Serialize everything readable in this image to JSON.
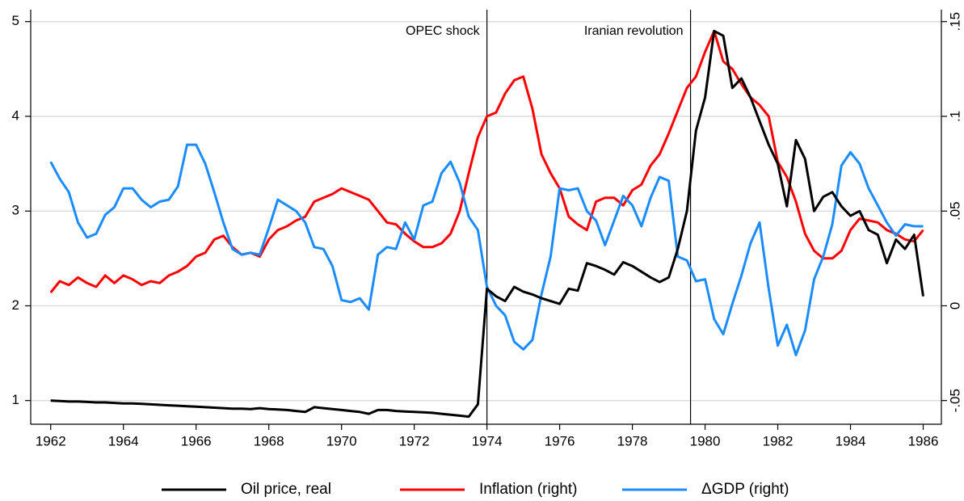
{
  "chart_data": {
    "type": "line",
    "x": [
      1962,
      1962.25,
      1962.5,
      1962.75,
      1963,
      1963.25,
      1963.5,
      1963.75,
      1964,
      1964.25,
      1964.5,
      1964.75,
      1965,
      1965.25,
      1965.5,
      1965.75,
      1966,
      1966.25,
      1966.5,
      1966.75,
      1967,
      1967.25,
      1967.5,
      1967.75,
      1968,
      1968.25,
      1968.5,
      1968.75,
      1969,
      1969.25,
      1969.5,
      1969.75,
      1970,
      1970.25,
      1970.5,
      1970.75,
      1971,
      1971.25,
      1971.5,
      1971.75,
      1972,
      1972.25,
      1972.5,
      1972.75,
      1973,
      1973.25,
      1973.5,
      1973.75,
      1974,
      1974.25,
      1974.5,
      1974.75,
      1975,
      1975.25,
      1975.5,
      1975.75,
      1976,
      1976.25,
      1976.5,
      1976.75,
      1977,
      1977.25,
      1977.5,
      1977.75,
      1978,
      1978.25,
      1978.5,
      1978.75,
      1979,
      1979.25,
      1979.5,
      1979.75,
      1980,
      1980.25,
      1980.5,
      1980.75,
      1981,
      1981.25,
      1981.5,
      1981.75,
      1982,
      1982.25,
      1982.5,
      1982.75,
      1983,
      1983.25,
      1983.5,
      1983.75,
      1984,
      1984.25,
      1984.5,
      1984.75,
      1985,
      1985.25,
      1985.5,
      1985.75,
      1986
    ],
    "series": [
      {
        "name": "Oil price, real",
        "color": "#000000",
        "axis": "y",
        "values": [
          1.0,
          0.995,
          0.99,
          0.99,
          0.985,
          0.98,
          0.98,
          0.975,
          0.97,
          0.97,
          0.965,
          0.96,
          0.955,
          0.95,
          0.945,
          0.94,
          0.935,
          0.93,
          0.925,
          0.92,
          0.915,
          0.915,
          0.91,
          0.92,
          0.91,
          0.905,
          0.9,
          0.89,
          0.88,
          0.93,
          0.92,
          0.91,
          0.9,
          0.89,
          0.88,
          0.86,
          0.9,
          0.9,
          0.89,
          0.885,
          0.88,
          0.875,
          0.87,
          0.86,
          0.85,
          0.84,
          0.83,
          0.96,
          2.18,
          2.1,
          2.05,
          2.2,
          2.15,
          2.12,
          2.08,
          2.05,
          2.02,
          2.18,
          2.16,
          2.45,
          2.42,
          2.38,
          2.33,
          2.46,
          2.42,
          2.36,
          2.3,
          2.25,
          2.3,
          2.6,
          3.0,
          3.85,
          4.2,
          4.9,
          4.85,
          4.3,
          4.4,
          4.2,
          3.95,
          3.7,
          3.5,
          3.05,
          3.75,
          3.55,
          3.0,
          3.15,
          3.2,
          3.05,
          2.95,
          3.0,
          2.8,
          2.75,
          2.45,
          2.7,
          2.6,
          2.75,
          2.1
        ]
      },
      {
        "name": "Inflation (right)",
        "color": "#ff0000",
        "axis": "y2",
        "values": [
          0.007,
          0.013,
          0.011,
          0.015,
          0.012,
          0.01,
          0.016,
          0.012,
          0.016,
          0.014,
          0.011,
          0.013,
          0.012,
          0.016,
          0.018,
          0.021,
          0.026,
          0.028,
          0.035,
          0.037,
          0.031,
          0.027,
          0.028,
          0.026,
          0.035,
          0.04,
          0.042,
          0.045,
          0.047,
          0.055,
          0.057,
          0.059,
          0.062,
          0.06,
          0.058,
          0.056,
          0.05,
          0.044,
          0.043,
          0.038,
          0.034,
          0.031,
          0.031,
          0.033,
          0.038,
          0.05,
          0.07,
          0.089,
          0.1,
          0.102,
          0.112,
          0.119,
          0.121,
          0.104,
          0.08,
          0.07,
          0.062,
          0.047,
          0.043,
          0.04,
          0.055,
          0.057,
          0.057,
          0.053,
          0.061,
          0.064,
          0.074,
          0.08,
          0.091,
          0.103,
          0.115,
          0.121,
          0.134,
          0.145,
          0.129,
          0.125,
          0.117,
          0.11,
          0.106,
          0.1,
          0.076,
          0.068,
          0.055,
          0.038,
          0.029,
          0.025,
          0.025,
          0.029,
          0.04,
          0.046,
          0.045,
          0.044,
          0.04,
          0.038,
          0.035,
          0.034,
          0.04
        ]
      },
      {
        "name": "ΔGDP (right)",
        "color": "#1a8cff",
        "axis": "y2",
        "values": [
          0.076,
          0.067,
          0.06,
          0.044,
          0.036,
          0.038,
          0.048,
          0.052,
          0.062,
          0.062,
          0.056,
          0.052,
          0.055,
          0.056,
          0.063,
          0.085,
          0.085,
          0.075,
          0.06,
          0.044,
          0.03,
          0.027,
          0.028,
          0.027,
          0.041,
          0.056,
          0.053,
          0.05,
          0.044,
          0.031,
          0.03,
          0.021,
          0.003,
          0.002,
          0.004,
          -0.002,
          0.027,
          0.031,
          0.03,
          0.044,
          0.035,
          0.053,
          0.055,
          0.07,
          0.076,
          0.065,
          0.047,
          0.04,
          0.01,
          0.0,
          -0.005,
          -0.019,
          -0.023,
          -0.018,
          0.006,
          0.026,
          0.062,
          0.061,
          0.062,
          0.05,
          0.045,
          0.032,
          0.045,
          0.058,
          0.053,
          0.042,
          0.057,
          0.068,
          0.066,
          0.026,
          0.024,
          0.013,
          0.014,
          -0.007,
          -0.015,
          0.001,
          0.016,
          0.033,
          0.044,
          0.009,
          -0.021,
          -0.01,
          -0.026,
          -0.013,
          0.014,
          0.026,
          0.043,
          0.074,
          0.081,
          0.075,
          0.062,
          0.053,
          0.044,
          0.037,
          0.043,
          0.042,
          0.042
        ]
      }
    ],
    "xlim": [
      1961.45,
      1986.5
    ],
    "xticks": [
      1962,
      1964,
      1966,
      1968,
      1970,
      1972,
      1974,
      1976,
      1978,
      1980,
      1982,
      1984,
      1986
    ],
    "ylim": [
      0.75,
      5.1
    ],
    "yticks": [
      1,
      2,
      3,
      4,
      5
    ],
    "y2lim": [
      -0.0625,
      0.155
    ],
    "y2ticks": [
      {
        "value": -0.05,
        "label": "-.05"
      },
      0,
      {
        "value": 0.05,
        "label": ".05"
      },
      {
        "value": 0.1,
        "label": ".1"
      },
      {
        "value": 0.15,
        "label": ".15"
      }
    ],
    "events": [
      {
        "x": 1974,
        "label": "OPEC shock"
      },
      {
        "x": 1979.6,
        "label": "Iranian revolution"
      }
    ],
    "grid": true,
    "legend": "bottom"
  }
}
